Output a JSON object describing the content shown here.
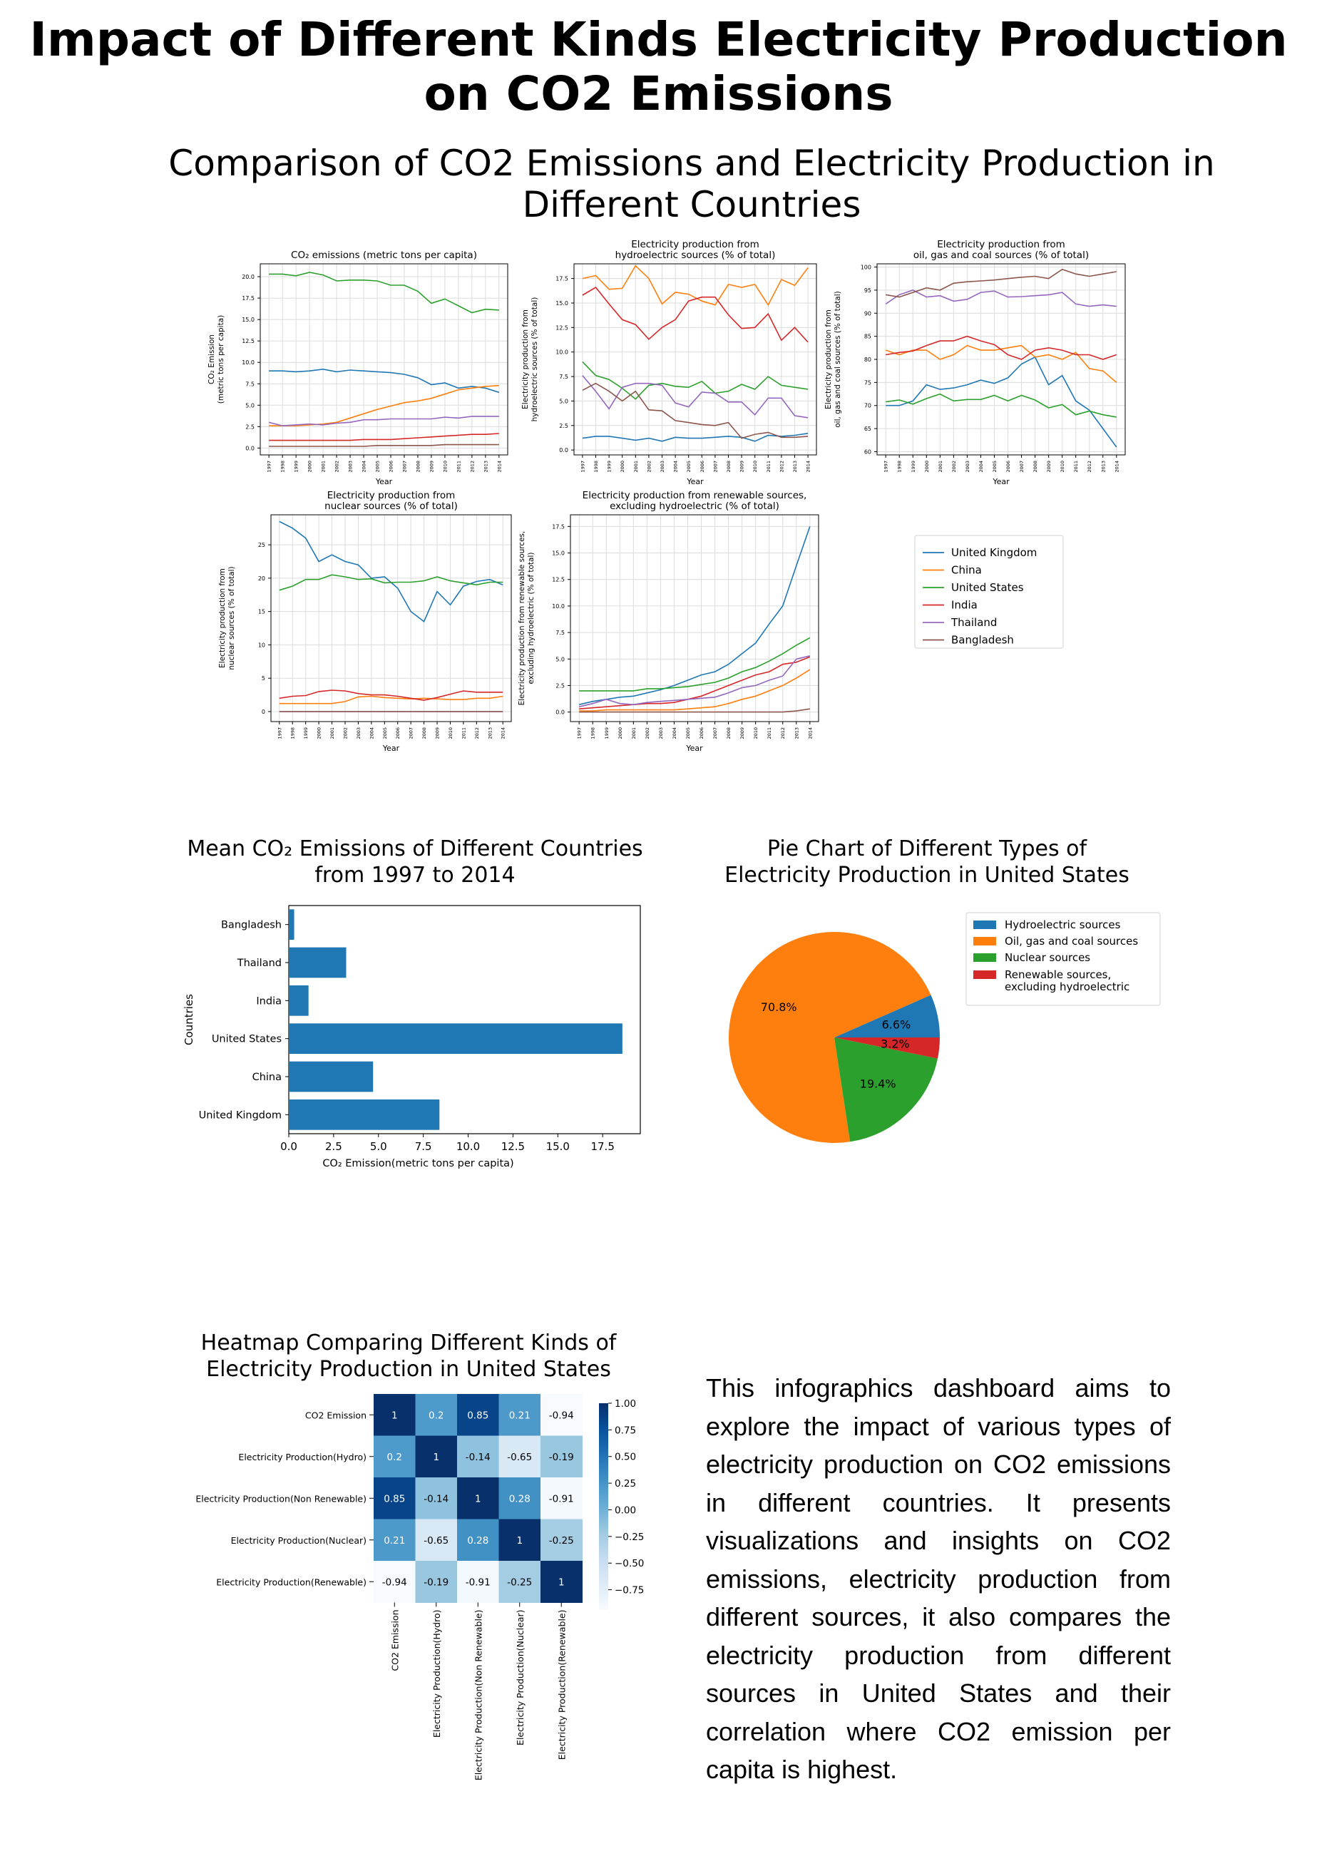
{
  "title": "Impact of Different Kinds Electricity Production on CO2 Emissions",
  "subtitle": "Comparison of CO2 Emissions and Electricity Production in Different Countries",
  "description": "This infographics dashboard aims to explore the impact of various types of electricity production on CO2 emissions in different countries. It presents visualizations and insights on CO2 emissions, electricity production from different sources, it also compares the electricity production from different sources in United States and their correlation where CO2 emission per capita is highest.",
  "colors": {
    "United Kingdom": "#1f77b4",
    "China": "#ff7f0e",
    "United States": "#2ca02c",
    "India": "#d62728",
    "Thailand": "#9467bd",
    "Bangladesh": "#8c564b",
    "bar": "#1f77b4"
  },
  "country_legend": [
    "United Kingdom",
    "China",
    "United States",
    "India",
    "Thailand",
    "Bangladesh"
  ],
  "chart_data": [
    {
      "type": "line",
      "title": "CO₂ emissions (metric tons per capita)",
      "xlabel": "Year",
      "ylabel": "CO₂ Emission\n(metric tons per capita)",
      "x": [
        1997,
        1998,
        1999,
        2000,
        2001,
        2002,
        2003,
        2004,
        2005,
        2006,
        2007,
        2008,
        2009,
        2010,
        2011,
        2012,
        2013,
        2014
      ],
      "ylim": [
        -0.8,
        21.5
      ],
      "yticks": [
        0.0,
        2.5,
        5.0,
        7.5,
        10.0,
        12.5,
        15.0,
        17.5,
        20.0
      ],
      "tick_decimals": 1,
      "grid": true,
      "series": [
        {
          "name": "United Kingdom",
          "values": [
            9.0,
            9.0,
            8.9,
            9.0,
            9.2,
            8.9,
            9.1,
            9.0,
            8.9,
            8.8,
            8.6,
            8.2,
            7.4,
            7.6,
            7.0,
            7.2,
            7.0,
            6.5
          ]
        },
        {
          "name": "China",
          "values": [
            2.6,
            2.6,
            2.6,
            2.7,
            2.8,
            3.0,
            3.5,
            4.0,
            4.5,
            4.9,
            5.3,
            5.5,
            5.8,
            6.3,
            6.8,
            7.0,
            7.2,
            7.3
          ]
        },
        {
          "name": "United States",
          "values": [
            20.3,
            20.3,
            20.1,
            20.5,
            20.2,
            19.5,
            19.6,
            19.6,
            19.5,
            19.0,
            19.0,
            18.3,
            16.9,
            17.4,
            16.6,
            15.8,
            16.2,
            16.1
          ]
        },
        {
          "name": "India",
          "values": [
            0.9,
            0.9,
            0.9,
            0.9,
            0.9,
            0.9,
            0.9,
            1.0,
            1.0,
            1.0,
            1.1,
            1.2,
            1.3,
            1.4,
            1.5,
            1.6,
            1.6,
            1.7
          ]
        },
        {
          "name": "Thailand",
          "values": [
            3.0,
            2.6,
            2.7,
            2.8,
            2.7,
            2.9,
            3.0,
            3.3,
            3.3,
            3.4,
            3.4,
            3.4,
            3.4,
            3.6,
            3.5,
            3.7,
            3.7,
            3.7
          ]
        },
        {
          "name": "Bangladesh",
          "values": [
            0.2,
            0.2,
            0.2,
            0.2,
            0.2,
            0.2,
            0.2,
            0.2,
            0.3,
            0.3,
            0.3,
            0.3,
            0.3,
            0.4,
            0.4,
            0.4,
            0.4,
            0.4
          ]
        }
      ]
    },
    {
      "type": "line",
      "title": "Electricity production from\nhydroelectric sources (% of total)",
      "xlabel": "Year",
      "ylabel": "Electricity production from\nhydroelectric sources (% of total)",
      "x": [
        1997,
        1998,
        1999,
        2000,
        2001,
        2002,
        2003,
        2004,
        2005,
        2006,
        2007,
        2008,
        2009,
        2010,
        2011,
        2012,
        2013,
        2014
      ],
      "ylim": [
        -0.5,
        19.0
      ],
      "yticks": [
        0.0,
        2.5,
        5.0,
        7.5,
        10.0,
        12.5,
        15.0,
        17.5
      ],
      "tick_decimals": 1,
      "grid": true,
      "series": [
        {
          "name": "United Kingdom",
          "values": [
            1.2,
            1.4,
            1.4,
            1.2,
            1.0,
            1.2,
            0.9,
            1.3,
            1.2,
            1.2,
            1.3,
            1.4,
            1.3,
            0.9,
            1.5,
            1.4,
            1.5,
            1.7
          ]
        },
        {
          "name": "China",
          "values": [
            17.5,
            17.8,
            16.4,
            16.5,
            18.8,
            17.5,
            14.9,
            16.1,
            15.9,
            15.2,
            14.8,
            16.9,
            16.6,
            16.9,
            14.8,
            17.4,
            16.8,
            18.6
          ]
        },
        {
          "name": "United States",
          "values": [
            9.0,
            7.6,
            7.2,
            6.3,
            5.2,
            6.6,
            6.8,
            6.5,
            6.4,
            7.0,
            5.8,
            6.0,
            6.7,
            6.2,
            7.5,
            6.6,
            6.4,
            6.2
          ]
        },
        {
          "name": "India",
          "values": [
            15.8,
            16.6,
            14.9,
            13.3,
            12.8,
            11.3,
            12.5,
            13.3,
            15.2,
            15.6,
            15.6,
            13.8,
            12.4,
            12.5,
            13.9,
            11.2,
            12.5,
            11.0
          ]
        },
        {
          "name": "Thailand",
          "values": [
            7.6,
            6.0,
            4.2,
            6.4,
            6.8,
            6.8,
            6.6,
            4.8,
            4.4,
            5.9,
            5.8,
            4.9,
            4.9,
            3.6,
            5.3,
            5.3,
            3.5,
            3.3
          ]
        },
        {
          "name": "Bangladesh",
          "values": [
            6.1,
            6.8,
            6.0,
            5.0,
            6.0,
            4.1,
            4.0,
            3.0,
            2.8,
            2.6,
            2.5,
            2.8,
            1.2,
            1.6,
            1.8,
            1.3,
            1.3,
            1.4
          ]
        }
      ]
    },
    {
      "type": "line",
      "title": "Electricity production from\noil, gas and coal sources (% of total)",
      "xlabel": "Year",
      "ylabel": "Electricity production from\noil, gas and coal sources (% of total)",
      "x": [
        1997,
        1998,
        1999,
        2000,
        2001,
        2002,
        2003,
        2004,
        2005,
        2006,
        2007,
        2008,
        2009,
        2010,
        2011,
        2012,
        2013,
        2014
      ],
      "ylim": [
        59.3,
        100.7
      ],
      "yticks": [
        60,
        65,
        70,
        75,
        80,
        85,
        90,
        95,
        100
      ],
      "tick_decimals": 0,
      "grid": true,
      "series": [
        {
          "name": "United Kingdom",
          "values": [
            70.0,
            70.0,
            71.0,
            74.5,
            73.5,
            73.8,
            74.5,
            75.5,
            74.8,
            76.0,
            79.0,
            80.5,
            74.5,
            76.5,
            71.0,
            69.0,
            65.0,
            61.0
          ]
        },
        {
          "name": "China",
          "values": [
            82.0,
            81.0,
            82.0,
            82.0,
            80.0,
            81.0,
            83.0,
            82.0,
            82.0,
            82.5,
            83.0,
            80.5,
            81.0,
            80.0,
            81.5,
            78.0,
            77.5,
            75.0
          ]
        },
        {
          "name": "United States",
          "values": [
            70.8,
            71.2,
            70.3,
            71.5,
            72.5,
            71.0,
            71.3,
            71.3,
            72.2,
            71.0,
            72.2,
            71.2,
            69.5,
            70.2,
            68.0,
            68.8,
            68.0,
            67.5
          ]
        },
        {
          "name": "India",
          "values": [
            81.0,
            81.5,
            81.8,
            83.0,
            84.0,
            84.0,
            85.0,
            84.0,
            83.2,
            81.0,
            80.0,
            82.0,
            82.5,
            82.0,
            81.0,
            81.0,
            80.0,
            81.0
          ]
        },
        {
          "name": "Thailand",
          "values": [
            92.0,
            94.0,
            95.0,
            93.5,
            93.8,
            92.6,
            93.0,
            94.5,
            94.8,
            93.5,
            93.6,
            93.8,
            94.0,
            94.5,
            92.0,
            91.5,
            91.8,
            91.5
          ]
        },
        {
          "name": "Bangladesh",
          "values": [
            94.0,
            93.5,
            94.5,
            95.5,
            95.0,
            96.5,
            96.8,
            97.0,
            97.2,
            97.5,
            97.8,
            98.0,
            97.5,
            99.5,
            98.5,
            98.0,
            98.5,
            99.0
          ]
        }
      ]
    },
    {
      "type": "line",
      "title": "Electricity production from\nnuclear sources (% of total)",
      "xlabel": "Year",
      "ylabel": "Electricity production from\nnuclear sources (% of total)",
      "x": [
        1997,
        1998,
        1999,
        2000,
        2001,
        2002,
        2003,
        2004,
        2005,
        2006,
        2007,
        2008,
        2009,
        2010,
        2011,
        2012,
        2013,
        2014
      ],
      "ylim": [
        -1.5,
        29.5
      ],
      "yticks": [
        0,
        5,
        10,
        15,
        20,
        25
      ],
      "tick_decimals": 0,
      "grid": true,
      "series": [
        {
          "name": "United Kingdom",
          "values": [
            28.5,
            27.5,
            26.0,
            22.5,
            23.5,
            22.5,
            22.0,
            20.0,
            20.2,
            18.5,
            15.0,
            13.5,
            18.0,
            16.0,
            18.8,
            19.5,
            19.8,
            19.0
          ]
        },
        {
          "name": "China",
          "values": [
            1.2,
            1.2,
            1.2,
            1.2,
            1.2,
            1.5,
            2.2,
            2.3,
            2.1,
            2.0,
            1.9,
            2.0,
            1.9,
            1.8,
            1.8,
            2.0,
            2.0,
            2.3
          ]
        },
        {
          "name": "United States",
          "values": [
            18.2,
            18.8,
            19.8,
            19.8,
            20.5,
            20.2,
            19.8,
            19.9,
            19.3,
            19.4,
            19.4,
            19.6,
            20.2,
            19.6,
            19.3,
            19.0,
            19.4,
            19.4
          ]
        },
        {
          "name": "India",
          "values": [
            2.0,
            2.3,
            2.4,
            3.0,
            3.2,
            3.1,
            2.7,
            2.5,
            2.5,
            2.3,
            2.0,
            1.7,
            2.1,
            2.6,
            3.1,
            2.9,
            2.9,
            2.9
          ]
        },
        {
          "name": "Thailand",
          "values": [
            0,
            0,
            0,
            0,
            0,
            0,
            0,
            0,
            0,
            0,
            0,
            0,
            0,
            0,
            0,
            0,
            0,
            0
          ]
        },
        {
          "name": "Bangladesh",
          "values": [
            0,
            0,
            0,
            0,
            0,
            0,
            0,
            0,
            0,
            0,
            0,
            0,
            0,
            0,
            0,
            0,
            0,
            0
          ]
        }
      ]
    },
    {
      "type": "line",
      "title": "Electricity production from renewable sources,\nexcluding hydroelectric (% of total)",
      "xlabel": "Year",
      "ylabel": "Electricity production from renewable sources,\nexcluding hydroelectric (% of total)",
      "x": [
        1997,
        1998,
        1999,
        2000,
        2001,
        2002,
        2003,
        2004,
        2005,
        2006,
        2007,
        2008,
        2009,
        2010,
        2011,
        2012,
        2013,
        2014
      ],
      "ylim": [
        -0.9,
        18.6
      ],
      "yticks": [
        0.0,
        2.5,
        5.0,
        7.5,
        10.0,
        12.5,
        15.0,
        17.5
      ],
      "tick_decimals": 1,
      "grid": true,
      "series": [
        {
          "name": "United Kingdom",
          "values": [
            0.7,
            1.0,
            1.2,
            1.4,
            1.5,
            1.8,
            2.1,
            2.5,
            3.0,
            3.5,
            3.8,
            4.5,
            5.5,
            6.5,
            8.3,
            10.0,
            13.8,
            17.5
          ]
        },
        {
          "name": "China",
          "values": [
            0.1,
            0.1,
            0.2,
            0.2,
            0.2,
            0.2,
            0.2,
            0.2,
            0.3,
            0.4,
            0.5,
            0.8,
            1.2,
            1.5,
            2.0,
            2.5,
            3.2,
            4.0
          ]
        },
        {
          "name": "United States",
          "values": [
            2.0,
            2.0,
            2.0,
            2.0,
            2.0,
            2.2,
            2.2,
            2.3,
            2.4,
            2.6,
            2.8,
            3.2,
            3.8,
            4.2,
            4.8,
            5.5,
            6.3,
            7.0
          ]
        },
        {
          "name": "India",
          "values": [
            0.3,
            0.4,
            0.5,
            0.6,
            0.7,
            0.8,
            0.8,
            0.9,
            1.2,
            1.5,
            2.0,
            2.5,
            3.0,
            3.5,
            3.8,
            4.5,
            4.7,
            5.2
          ]
        },
        {
          "name": "Thailand",
          "values": [
            0.5,
            0.8,
            1.2,
            0.8,
            0.7,
            0.9,
            1.0,
            1.1,
            1.2,
            1.3,
            1.4,
            1.8,
            2.3,
            2.5,
            3.0,
            3.4,
            5.0,
            5.3
          ]
        },
        {
          "name": "Bangladesh",
          "values": [
            0,
            0,
            0,
            0,
            0,
            0,
            0,
            0,
            0,
            0,
            0,
            0,
            0,
            0,
            0,
            0,
            0.1,
            0.3
          ]
        }
      ]
    },
    {
      "type": "bar",
      "orientation": "horizontal",
      "title": "Mean CO₂ Emissions of Different Countries\nfrom 1997 to 2014",
      "xlabel": "CO₂ Emission(metric tons per capita)",
      "ylabel": "Countries",
      "categories": [
        "United Kingdom",
        "China",
        "United States",
        "India",
        "Thailand",
        "Bangladesh"
      ],
      "values": [
        8.4,
        4.7,
        18.6,
        1.1,
        3.2,
        0.3
      ],
      "xlim": [
        0,
        19.6
      ],
      "xticks": [
        0.0,
        2.5,
        5.0,
        7.5,
        10.0,
        12.5,
        15.0,
        17.5
      ],
      "grid": false
    },
    {
      "type": "pie",
      "title": "Pie Chart of Different Types of\nElectricity Production in United States",
      "labels": [
        "Hydroelectric sources",
        "Oil, gas and coal sources",
        "Nuclear sources",
        "Renewable sources,\nexcluding hydroelectric"
      ],
      "values": [
        6.6,
        70.8,
        19.4,
        3.2
      ],
      "value_labels": [
        "6.6%",
        "70.8%",
        "19.4%",
        "3.2%"
      ],
      "colors": [
        "#1f77b4",
        "#ff7f0e",
        "#2ca02c",
        "#d62728"
      ],
      "legend": "top-right"
    },
    {
      "type": "heatmap",
      "title": "Heatmap Comparing Different Kinds of\nElectricity Production in United States",
      "labels": [
        "CO2 Emission",
        "Electricity Production(Hydro)",
        "Electricity Production(Non Renewable)",
        "Electricity Production(Nuclear)",
        "Electricity Production(Renewable)"
      ],
      "matrix": [
        [
          1,
          0.2,
          0.85,
          0.21,
          -0.94
        ],
        [
          0.2,
          1,
          -0.14,
          -0.65,
          -0.19
        ],
        [
          0.85,
          -0.14,
          1,
          0.28,
          -0.91
        ],
        [
          0.21,
          -0.65,
          0.28,
          1,
          -0.25
        ],
        [
          -0.94,
          -0.19,
          -0.91,
          -0.25,
          1
        ]
      ],
      "cell_labels": [
        [
          "1",
          "0.2",
          "0.85",
          "0.21",
          "-0.94"
        ],
        [
          "0.2",
          "1",
          "-0.14",
          "-0.65",
          "-0.19"
        ],
        [
          "0.85",
          "-0.14",
          "1",
          "0.28",
          "-0.91"
        ],
        [
          "0.21",
          "-0.65",
          "0.28",
          "1",
          "-0.25"
        ],
        [
          "-0.94",
          "-0.19",
          "-0.91",
          "-0.25",
          "1"
        ]
      ],
      "colorbar_ticks": [
        1.0,
        0.75,
        0.5,
        0.25,
        0.0,
        -0.25,
        -0.5,
        -0.75
      ],
      "colorbar_tick_labels": [
        "1.00",
        "0.75",
        "0.50",
        "0.25",
        "0.00",
        "−0.25",
        "−0.50",
        "−0.75"
      ],
      "vmin": -0.94,
      "vmax": 1.0,
      "colormap": "Blues"
    }
  ]
}
